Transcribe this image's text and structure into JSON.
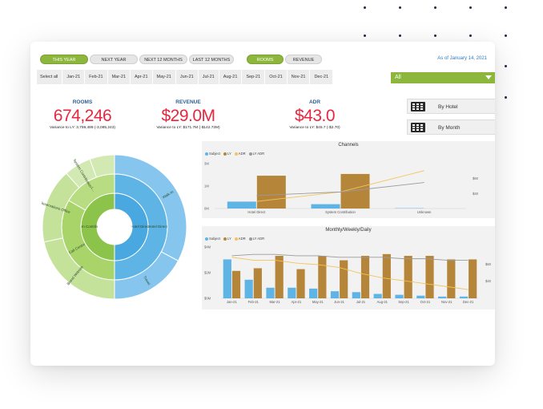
{
  "filters": {
    "period_buttons": [
      {
        "label": "THIS YEAR",
        "active": true
      },
      {
        "label": "NEXT YEAR",
        "active": false
      },
      {
        "label": "NEXT 12 MONTHS",
        "active": false
      },
      {
        "label": "LAST 12 MONTHS",
        "active": false
      }
    ],
    "metric_buttons": [
      {
        "label": "ROOMS",
        "active": true
      },
      {
        "label": "REVENUE",
        "active": false
      }
    ],
    "as_of": "As of January 14, 2021",
    "months": [
      "Select all",
      "Jan-21",
      "Feb-21",
      "Mar-21",
      "Apr-21",
      "May-21",
      "Jun-21",
      "Jul-21",
      "Aug-21",
      "Sep-21",
      "Oct-21",
      "Nov-21",
      "Dec-21"
    ],
    "dropdown_value": "All"
  },
  "kpis": {
    "rooms": {
      "label": "ROOMS",
      "value": "674,246",
      "variance": "Variance to LY: 3,759,489 (-3,085,243)"
    },
    "revenue": {
      "label": "REVENUE",
      "value": "$29.0M",
      "variance": "Variance to LY: $171.7M (-$142.72M)"
    },
    "adr": {
      "label": "ADR",
      "value": "$43.0",
      "variance": "Variance to LY: $45.7 (-$2.70)"
    }
  },
  "side_buttons": {
    "by_hotel": "By Hotel",
    "by_month": "By Month"
  },
  "colors": {
    "green": "#8cb63c",
    "blue": "#5fb4e6",
    "gold": "#b5863a",
    "red": "#e8273f",
    "navy": "#2b5f99"
  },
  "sunburst": {
    "labels": [
      "Walk-In",
      "Hotel Direct",
      "Hotel Direct",
      "Travel",
      "System Contribution",
      "Call Centre",
      "Brand Website",
      "Reservations Office",
      "System Contribution",
      "L..."
    ]
  },
  "chart_data": [
    {
      "type": "bar",
      "title": "Channels",
      "legend": [
        "Subject",
        "LY",
        "ADR",
        "LY ADR"
      ],
      "categories": [
        "Hotel Direct",
        "System Contribution",
        "Unknown"
      ],
      "y_ticks": [
        "3M",
        "1M",
        "0M"
      ],
      "y2_ticks": [
        "$60",
        "$40"
      ],
      "series": [
        {
          "name": "Subject",
          "kind": "bar",
          "values": [
            0.4,
            0.25,
            0.02
          ]
        },
        {
          "name": "LY",
          "kind": "bar",
          "values": [
            1.9,
            2.0,
            0
          ]
        },
        {
          "name": "ADR",
          "kind": "line",
          "values": [
            36,
            44,
            62
          ]
        },
        {
          "name": "LY ADR",
          "kind": "line",
          "values": [
            41,
            44,
            52
          ]
        }
      ],
      "ylim": [
        0,
        2.6
      ],
      "y2lim": [
        30,
        68
      ]
    },
    {
      "type": "bar",
      "title": "Monthly/Weekly/Daily",
      "legend": [
        "Subject",
        "LY",
        "ADR",
        "LY ADR"
      ],
      "categories": [
        "Jan-21",
        "Feb-21",
        "Mar-21",
        "Apr-21",
        "May-21",
        "Jun-21",
        "Jul-21",
        "Aug-21",
        "Sep-21",
        "Oct-21",
        "Nov-21",
        "Dec-21"
      ],
      "y_ticks": [
        "$4M",
        "$2M",
        "$0M"
      ],
      "y2_ticks": [
        "$60",
        "$40"
      ],
      "series": [
        {
          "name": "Subject",
          "kind": "bar",
          "values": [
            4.4,
            2.1,
            1.2,
            1.2,
            1.1,
            0.8,
            0.7,
            0.5,
            0.4,
            0.3,
            0.2,
            0.2
          ]
        },
        {
          "name": "LY",
          "kind": "bar",
          "values": [
            3.1,
            3.4,
            4.8,
            3.3,
            4.8,
            4.3,
            4.8,
            5.0,
            4.8,
            4.8,
            4.4,
            4.4
          ]
        },
        {
          "name": "ADR",
          "kind": "line",
          "values": [
            58,
            56,
            56,
            54,
            53,
            51,
            47,
            44,
            42,
            40,
            38,
            36
          ]
        },
        {
          "name": "LY ADR",
          "kind": "line",
          "values": [
            59,
            60,
            60,
            59,
            59,
            58,
            58,
            58,
            57,
            57,
            56,
            56
          ]
        }
      ],
      "ylim": [
        0,
        5.8
      ],
      "y2lim": [
        30,
        65
      ]
    }
  ]
}
